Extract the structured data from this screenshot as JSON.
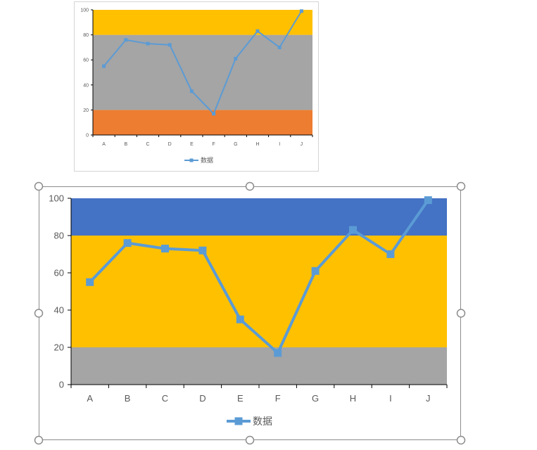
{
  "chart_data": [
    {
      "type": "line",
      "categories": [
        "A",
        "B",
        "C",
        "D",
        "E",
        "F",
        "G",
        "H",
        "I",
        "J"
      ],
      "series": [
        {
          "name": "数据",
          "values": [
            55,
            76,
            73,
            72,
            35,
            17,
            61,
            83,
            70,
            99
          ],
          "color": "#5b9bd5"
        }
      ],
      "bands": [
        {
          "from": 0,
          "to": 20,
          "color": "#ed7d31"
        },
        {
          "from": 20,
          "to": 80,
          "color": "#a5a5a5"
        },
        {
          "from": 80,
          "to": 100,
          "color": "#ffc000"
        }
      ],
      "ylim": [
        0,
        100
      ],
      "yticks": [
        "0",
        "20",
        "40",
        "60",
        "80",
        "100"
      ],
      "legend": "bottom",
      "grid": false
    },
    {
      "type": "line",
      "categories": [
        "A",
        "B",
        "C",
        "D",
        "E",
        "F",
        "G",
        "H",
        "I",
        "J"
      ],
      "series": [
        {
          "name": "数据",
          "values": [
            55,
            76,
            73,
            72,
            35,
            17,
            61,
            83,
            70,
            99
          ],
          "color": "#5b9bd5"
        }
      ],
      "bands": [
        {
          "from": 0,
          "to": 20,
          "color": "#a5a5a5"
        },
        {
          "from": 20,
          "to": 80,
          "color": "#ffc000"
        },
        {
          "from": 80,
          "to": 100,
          "color": "#4472c4"
        }
      ],
      "ylim": [
        0,
        100
      ],
      "yticks": [
        "0",
        "20",
        "40",
        "60",
        "80",
        "100"
      ],
      "legend": "bottom",
      "grid": false,
      "selected": true
    }
  ]
}
